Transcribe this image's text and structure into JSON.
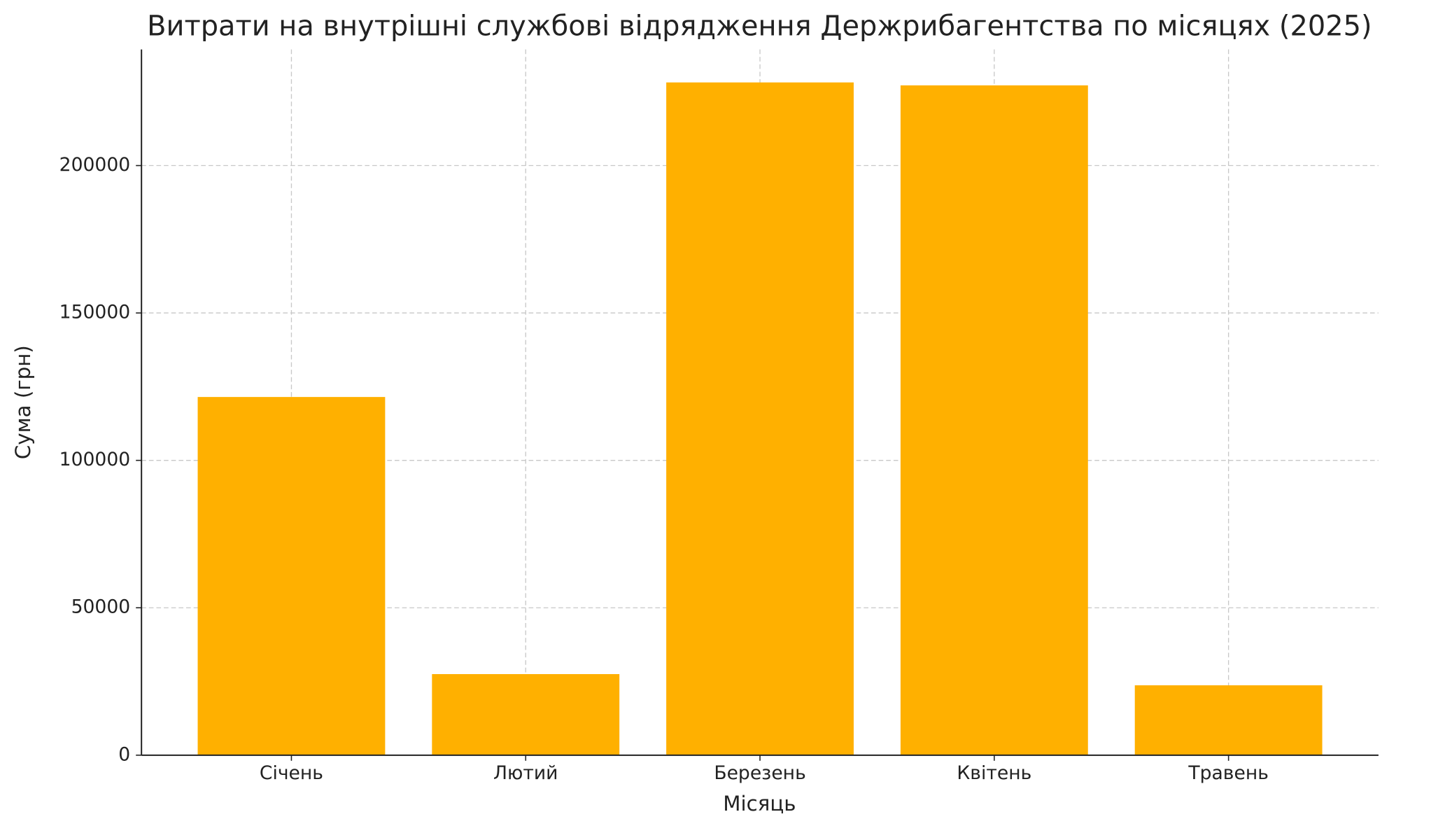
{
  "chart_data": {
    "type": "bar",
    "title": "Витрати на внутрішні службові відрядження Держрибагентства по місяцях (2025)",
    "x_label": "Місяць",
    "y_label": "Сума (грн)",
    "categories": [
      "Січень",
      "Лютий",
      "Березень",
      "Квітень",
      "Травень"
    ],
    "values": [
      121500,
      27500,
      228200,
      227200,
      23700
    ],
    "color": "#ffb000",
    "ylim": [
      0,
      239400
    ],
    "yticks": [
      0,
      50000,
      100000,
      150000,
      200000
    ],
    "grid": true
  }
}
